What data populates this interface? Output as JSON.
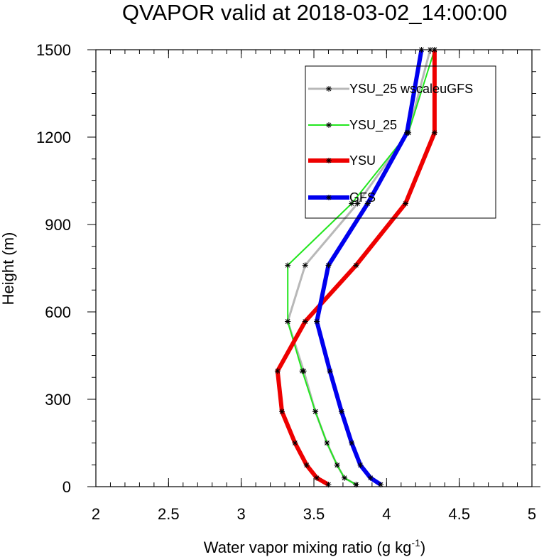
{
  "chart_data": {
    "type": "line",
    "title": "QVAPOR valid at 2018-03-02_14:00:00",
    "xlabel": "Water vapor mixing ratio (g kg",
    "xlabel_sup": "-1",
    "xlabel_end": ")",
    "ylabel": "Height (m)",
    "xlim": [
      2,
      5
    ],
    "ylim": [
      0,
      1500
    ],
    "xticks": [
      2,
      2.5,
      3,
      3.5,
      4,
      4.5,
      5
    ],
    "xtick_labels": [
      "2",
      "2.5",
      "3",
      "3.5",
      "4",
      "4.5",
      "5"
    ],
    "yticks": [
      0,
      300,
      600,
      900,
      1200,
      1500
    ],
    "ytick_labels": [
      "0",
      "300",
      "600",
      "900",
      "1200",
      "1500"
    ],
    "legend_position": "top-right",
    "grid": false,
    "series": [
      {
        "name": "YSU_25 wscaleuGFS",
        "color": "#b8b8b8",
        "width": 3,
        "x": [
          3.79,
          3.71,
          3.66,
          3.59,
          3.51,
          3.43,
          3.32,
          3.44,
          3.8,
          4.15,
          4.3
        ],
        "y": [
          7,
          30,
          74,
          150,
          258,
          397,
          567,
          760,
          972,
          1215,
          1500
        ]
      },
      {
        "name": "YSU_25",
        "color": "#22e61e",
        "width": 2,
        "x": [
          3.79,
          3.71,
          3.66,
          3.59,
          3.51,
          3.42,
          3.32,
          3.32,
          3.76,
          4.15,
          4.33
        ],
        "y": [
          7,
          30,
          74,
          150,
          258,
          397,
          567,
          760,
          972,
          1215,
          1500
        ]
      },
      {
        "name": "YSU",
        "color": "#ee0000",
        "width": 6,
        "x": [
          3.6,
          3.52,
          3.45,
          3.37,
          3.28,
          3.25,
          3.44,
          3.79,
          4.13,
          4.33,
          4.33
        ],
        "y": [
          7,
          30,
          74,
          150,
          258,
          397,
          567,
          760,
          972,
          1215,
          1500
        ]
      },
      {
        "name": "GFS",
        "color": "#0000ee",
        "width": 6,
        "x": [
          3.96,
          3.89,
          3.82,
          3.76,
          3.69,
          3.61,
          3.52,
          3.6,
          3.87,
          4.14,
          4.24
        ],
        "y": [
          7,
          30,
          74,
          150,
          258,
          397,
          567,
          760,
          972,
          1215,
          1500
        ]
      }
    ]
  }
}
